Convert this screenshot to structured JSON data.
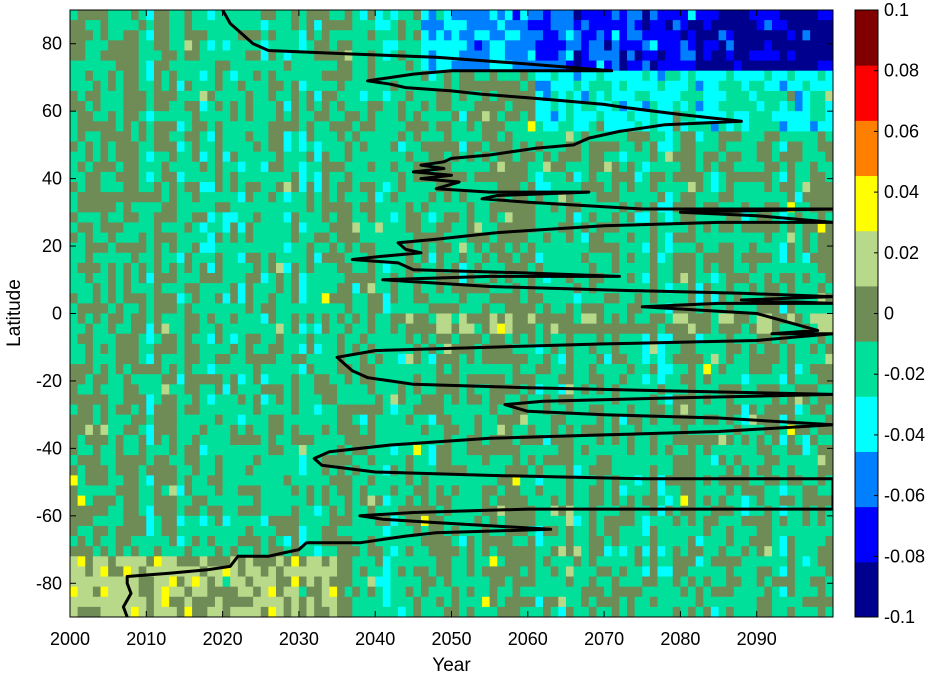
{
  "chart_data": {
    "type": "heatmap",
    "xlabel": "Year",
    "ylabel": "Latitude",
    "xlim": [
      2000,
      2100
    ],
    "ylim": [
      -90,
      90
    ],
    "x_ticks": [
      2000,
      2010,
      2020,
      2030,
      2040,
      2050,
      2060,
      2070,
      2080,
      2090
    ],
    "x_tick_labels": [
      "2000",
      "2010",
      "2020",
      "2030",
      "2040",
      "2050",
      "2060",
      "2070",
      "2080",
      "2090"
    ],
    "y_ticks": [
      80,
      60,
      40,
      20,
      0,
      -20,
      -40,
      -60,
      -80
    ],
    "y_tick_labels": [
      "80",
      "60",
      "40",
      "20",
      "0",
      "-20",
      "-40",
      "-60",
      "-80"
    ],
    "colorbar": {
      "min": -0.1,
      "max": 0.1,
      "ticks": [
        0.1,
        0.08,
        0.06,
        0.04,
        0.02,
        0,
        -0.02,
        -0.04,
        -0.06,
        -0.08,
        -0.1
      ],
      "tick_labels": [
        "0.1",
        "0.08",
        "0.06",
        "0.04",
        "0.02",
        "0",
        "-0.02",
        "-0.04",
        "-0.06",
        "-0.08",
        "-0.1"
      ],
      "colormap": "jet-like, discrete",
      "colors": [
        "#00008f",
        "#0000ff",
        "#0080ff",
        "#00ffff",
        "#00e09a",
        "#6f8c57",
        "#b8d98a",
        "#ffff00",
        "#ff8000",
        "#ff0000",
        "#800000"
      ]
    },
    "heatmap_summary": {
      "x_resolution_years": 1,
      "y_resolution_degrees": 3,
      "background_value": -0.012,
      "notes": "Mostly small anomalies between -0.02 and 0.02; negative values (blue) dominate north of 70N after ~2045; positive anomalies near 75-90S before ~2035."
    },
    "contour_line": {
      "color": "#000000",
      "points": [
        [
          2007.5,
          -90
        ],
        [
          2007.0,
          -87
        ],
        [
          2008.0,
          -83
        ],
        [
          2007.5,
          -80
        ],
        [
          2007.5,
          -78
        ],
        [
          2013.0,
          -77
        ],
        [
          2018.0,
          -76
        ],
        [
          2021.0,
          -75
        ],
        [
          2022.0,
          -72
        ],
        [
          2026.0,
          -72
        ],
        [
          2028.0,
          -71
        ],
        [
          2030.0,
          -70
        ],
        [
          2031.0,
          -68
        ],
        [
          2034.0,
          -68
        ],
        [
          2038.0,
          -68
        ],
        [
          2041.0,
          -67
        ],
        [
          2044.0,
          -66
        ],
        [
          2048.0,
          -65
        ],
        [
          2063.0,
          -64
        ],
        [
          2048.0,
          -62
        ],
        [
          2041.0,
          -61
        ],
        [
          2038.0,
          -60
        ],
        [
          2045.0,
          -59
        ],
        [
          2060.0,
          -58
        ],
        [
          2080.0,
          -58
        ],
        [
          2100.0,
          -58
        ],
        [
          2100.0,
          -49
        ],
        [
          2075.0,
          -49
        ],
        [
          2055.0,
          -48
        ],
        [
          2040.0,
          -47
        ],
        [
          2033.0,
          -45
        ],
        [
          2032.0,
          -43
        ],
        [
          2034.0,
          -41
        ],
        [
          2042.0,
          -39
        ],
        [
          2055.0,
          -37
        ],
        [
          2070.0,
          -36
        ],
        [
          2085.0,
          -35
        ],
        [
          2100.0,
          -33
        ],
        [
          2085.0,
          -31
        ],
        [
          2070.0,
          -30
        ],
        [
          2060.0,
          -29
        ],
        [
          2057.0,
          -27
        ],
        [
          2062.0,
          -26
        ],
        [
          2080.0,
          -25
        ],
        [
          2100.0,
          -24
        ],
        [
          2080.0,
          -23
        ],
        [
          2060.0,
          -22
        ],
        [
          2045.0,
          -21
        ],
        [
          2039.0,
          -19
        ],
        [
          2037.0,
          -17
        ],
        [
          2036.0,
          -15
        ],
        [
          2035.0,
          -13
        ],
        [
          2040.0,
          -11
        ],
        [
          2055.0,
          -10
        ],
        [
          2070.0,
          -9
        ],
        [
          2090.0,
          -8
        ],
        [
          2100.0,
          -6
        ],
        [
          2092.0,
          -6
        ],
        [
          2098.0,
          -5
        ],
        [
          2090.0,
          0
        ],
        [
          2075.0,
          2
        ],
        [
          2085.0,
          3
        ],
        [
          2100.0,
          3
        ],
        [
          2088.0,
          4
        ],
        [
          2100.0,
          5
        ],
        [
          2088.0,
          6
        ],
        [
          2070.0,
          7
        ],
        [
          2055.0,
          8
        ],
        [
          2041.0,
          10
        ],
        [
          2055.0,
          11
        ],
        [
          2072.0,
          11
        ],
        [
          2060.0,
          12
        ],
        [
          2045.0,
          13
        ],
        [
          2043.0,
          15
        ],
        [
          2037.0,
          16
        ],
        [
          2041.0,
          17
        ],
        [
          2046.0,
          18
        ],
        [
          2044.0,
          19
        ],
        [
          2043.0,
          21
        ],
        [
          2048.0,
          22
        ],
        [
          2056.0,
          24
        ],
        [
          2070.0,
          26
        ],
        [
          2085.0,
          27
        ],
        [
          2100.0,
          27
        ],
        [
          2090.0,
          29
        ],
        [
          2080.0,
          30
        ],
        [
          2100.0,
          31
        ],
        [
          2075.0,
          31
        ],
        [
          2060.0,
          33
        ],
        [
          2054.0,
          34
        ],
        [
          2056.0,
          35
        ],
        [
          2068.0,
          36
        ],
        [
          2055.0,
          36
        ],
        [
          2048.0,
          37
        ],
        [
          2051.0,
          39
        ],
        [
          2046.0,
          40
        ],
        [
          2050.0,
          41
        ],
        [
          2045.0,
          42
        ],
        [
          2049.0,
          43
        ],
        [
          2046.0,
          44
        ],
        [
          2049.0,
          45
        ],
        [
          2050.0,
          46
        ],
        [
          2055.0,
          47
        ],
        [
          2058.0,
          48
        ],
        [
          2061.0,
          49
        ],
        [
          2066.0,
          50
        ],
        [
          2068.0,
          52
        ],
        [
          2072.0,
          54
        ],
        [
          2078.0,
          56
        ],
        [
          2088.0,
          57
        ],
        [
          2080.0,
          59
        ],
        [
          2073.0,
          61
        ],
        [
          2070.0,
          62
        ],
        [
          2065.0,
          63
        ],
        [
          2060.0,
          64
        ],
        [
          2054.0,
          65
        ],
        [
          2050.0,
          66
        ],
        [
          2044.0,
          67
        ],
        [
          2042.0,
          68
        ],
        [
          2039.0,
          69
        ],
        [
          2045.0,
          71
        ],
        [
          2050.0,
          72
        ],
        [
          2071.0,
          72
        ],
        [
          2060.0,
          74
        ],
        [
          2048.0,
          76
        ],
        [
          2036.0,
          77
        ],
        [
          2026.0,
          78
        ],
        [
          2024.0,
          80
        ],
        [
          2023.0,
          82
        ],
        [
          2022.0,
          84
        ],
        [
          2021.0,
          86
        ],
        [
          2020.5,
          88
        ],
        [
          2020.0,
          90
        ]
      ]
    }
  }
}
